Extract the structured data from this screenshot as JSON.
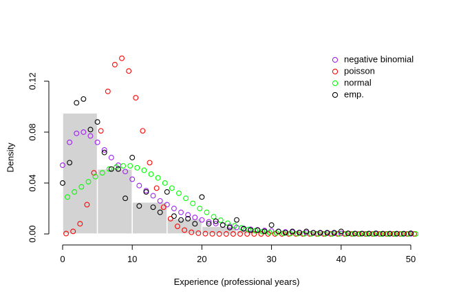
{
  "chart_data": {
    "type": "scatter",
    "title": "",
    "xlabel": "Experience (professional years)",
    "ylabel": "Density",
    "xlim": [
      0,
      51
    ],
    "ylim": [
      0,
      0.14
    ],
    "x_ticks": [
      0,
      10,
      20,
      30,
      40,
      50
    ],
    "y_ticks": [
      0.0,
      0.04,
      0.08,
      0.12
    ],
    "y_tick_labels": [
      "0.00",
      "0.04",
      "0.08",
      "0.12"
    ],
    "legend_position": "top-right",
    "histogram": {
      "bins": [
        {
          "from": 0,
          "to": 5,
          "density": 0.095
        },
        {
          "from": 5,
          "to": 10,
          "density": 0.051
        },
        {
          "from": 10,
          "to": 15,
          "density": 0.025
        },
        {
          "from": 15,
          "to": 20,
          "density": 0.012
        },
        {
          "from": 20,
          "to": 25,
          "density": 0.006
        },
        {
          "from": 25,
          "to": 30,
          "density": 0.003
        },
        {
          "from": 30,
          "to": 35,
          "density": 0.002
        },
        {
          "from": 35,
          "to": 40,
          "density": 0.001
        },
        {
          "from": 40,
          "to": 45,
          "density": 0.0005
        },
        {
          "from": 45,
          "to": 50,
          "density": 0.0003
        }
      ]
    },
    "series": [
      {
        "name": "negative binomial",
        "color": "#a020f0",
        "points": [
          [
            0,
            0.054
          ],
          [
            1,
            0.072
          ],
          [
            2,
            0.079
          ],
          [
            3,
            0.08
          ],
          [
            4,
            0.077
          ],
          [
            5,
            0.072
          ],
          [
            6,
            0.066
          ],
          [
            7,
            0.06
          ],
          [
            8,
            0.054
          ],
          [
            9,
            0.049
          ],
          [
            10,
            0.043
          ],
          [
            11,
            0.038
          ],
          [
            12,
            0.034
          ],
          [
            13,
            0.03
          ],
          [
            14,
            0.026
          ],
          [
            15,
            0.023
          ],
          [
            16,
            0.02
          ],
          [
            17,
            0.017
          ],
          [
            18,
            0.015
          ],
          [
            19,
            0.013
          ],
          [
            20,
            0.011
          ],
          [
            21,
            0.0095
          ],
          [
            22,
            0.0082
          ],
          [
            23,
            0.007
          ],
          [
            24,
            0.006
          ],
          [
            25,
            0.0051
          ],
          [
            26,
            0.0044
          ],
          [
            27,
            0.0037
          ],
          [
            28,
            0.0032
          ],
          [
            29,
            0.0027
          ],
          [
            30,
            0.0023
          ],
          [
            31,
            0.0019
          ],
          [
            32,
            0.0016
          ],
          [
            33,
            0.0014
          ],
          [
            34,
            0.0012
          ],
          [
            35,
            0.001
          ],
          [
            36,
            0.0008
          ],
          [
            37,
            0.0007
          ],
          [
            38,
            0.0006
          ],
          [
            39,
            0.0005
          ],
          [
            40,
            0.0004
          ],
          [
            41,
            0.00035
          ],
          [
            42,
            0.0003
          ],
          [
            43,
            0.00025
          ],
          [
            44,
            0.0002
          ],
          [
            45,
            0.00017
          ],
          [
            46,
            0.00014
          ],
          [
            47,
            0.00012
          ],
          [
            48,
            0.0001
          ],
          [
            49,
            8e-05
          ],
          [
            50,
            7e-05
          ]
        ]
      },
      {
        "name": "poisson",
        "color": "#ff0000",
        "points": [
          [
            0.5,
            0.0003
          ],
          [
            1.5,
            0.002
          ],
          [
            2.5,
            0.008
          ],
          [
            3.5,
            0.023
          ],
          [
            4.5,
            0.048
          ],
          [
            5.5,
            0.081
          ],
          [
            6.5,
            0.112
          ],
          [
            7.5,
            0.133
          ],
          [
            8.5,
            0.138
          ],
          [
            9.5,
            0.128
          ],
          [
            10.5,
            0.107
          ],
          [
            11.5,
            0.081
          ],
          [
            12.5,
            0.056
          ],
          [
            13.5,
            0.036
          ],
          [
            14.5,
            0.021
          ],
          [
            15.5,
            0.012
          ],
          [
            16.5,
            0.006
          ],
          [
            17.5,
            0.003
          ],
          [
            18.5,
            0.0013
          ],
          [
            19.5,
            0.0006
          ],
          [
            20.5,
            0.0002
          ],
          [
            21.5,
            0.0001
          ],
          [
            22.5,
            0
          ],
          [
            23.5,
            0
          ],
          [
            24.5,
            0
          ],
          [
            25.5,
            0
          ],
          [
            26.5,
            0
          ],
          [
            27.5,
            0
          ],
          [
            28.5,
            0
          ],
          [
            29.5,
            0
          ],
          [
            30.5,
            0
          ],
          [
            31.5,
            0
          ],
          [
            32.5,
            0
          ],
          [
            33.5,
            0
          ],
          [
            34.5,
            0
          ],
          [
            35.5,
            0
          ],
          [
            36.5,
            0
          ],
          [
            37.5,
            0
          ],
          [
            38.5,
            0
          ],
          [
            39.5,
            0
          ],
          [
            40.5,
            0
          ],
          [
            41.5,
            0
          ],
          [
            42.5,
            0
          ],
          [
            43.5,
            0
          ],
          [
            44.5,
            0
          ],
          [
            45.5,
            0
          ],
          [
            46.5,
            0
          ],
          [
            47.5,
            0
          ],
          [
            48.5,
            0
          ],
          [
            49.5,
            0
          ],
          [
            50.5,
            0
          ]
        ]
      },
      {
        "name": "normal",
        "color": "#00ff00",
        "points": [
          [
            0.7,
            0.029
          ],
          [
            1.7,
            0.033
          ],
          [
            2.7,
            0.037
          ],
          [
            3.7,
            0.041
          ],
          [
            4.7,
            0.045
          ],
          [
            5.7,
            0.048
          ],
          [
            6.7,
            0.051
          ],
          [
            7.7,
            0.0525
          ],
          [
            8.7,
            0.0535
          ],
          [
            9.7,
            0.0535
          ],
          [
            10.7,
            0.052
          ],
          [
            11.7,
            0.05
          ],
          [
            12.7,
            0.047
          ],
          [
            13.7,
            0.044
          ],
          [
            14.7,
            0.04
          ],
          [
            15.7,
            0.036
          ],
          [
            16.7,
            0.032
          ],
          [
            17.7,
            0.028
          ],
          [
            18.7,
            0.024
          ],
          [
            19.7,
            0.02
          ],
          [
            20.7,
            0.017
          ],
          [
            21.7,
            0.0135
          ],
          [
            22.7,
            0.0108
          ],
          [
            23.7,
            0.0084
          ],
          [
            24.7,
            0.0064
          ],
          [
            25.7,
            0.0048
          ],
          [
            26.7,
            0.0035
          ],
          [
            27.7,
            0.0025
          ],
          [
            28.7,
            0.0018
          ],
          [
            29.7,
            0.0012
          ],
          [
            30.7,
            0.0008
          ],
          [
            31.7,
            0.0005
          ],
          [
            32.7,
            0.0003
          ],
          [
            33.7,
            0.0002
          ],
          [
            34.7,
            0.0001
          ],
          [
            35.7,
            0.0001
          ],
          [
            36.7,
            0
          ],
          [
            37.7,
            0
          ],
          [
            38.7,
            0
          ],
          [
            39.7,
            0
          ],
          [
            40.7,
            0
          ],
          [
            41.7,
            0
          ],
          [
            42.7,
            0
          ],
          [
            43.7,
            0
          ],
          [
            44.7,
            0
          ],
          [
            45.7,
            0
          ],
          [
            46.7,
            0
          ],
          [
            47.7,
            0
          ],
          [
            48.7,
            0
          ],
          [
            49.7,
            0
          ],
          [
            50.7,
            0
          ]
        ]
      },
      {
        "name": "emp.",
        "color": "#000000",
        "points": [
          [
            0,
            0.04
          ],
          [
            1,
            0.056
          ],
          [
            2,
            0.103
          ],
          [
            3,
            0.106
          ],
          [
            4,
            0.082
          ],
          [
            5,
            0.088
          ],
          [
            6,
            0.064
          ],
          [
            7,
            0.051
          ],
          [
            8,
            0.051
          ],
          [
            9,
            0.028
          ],
          [
            10,
            0.06
          ],
          [
            11,
            0.022
          ],
          [
            12,
            0.033
          ],
          [
            13,
            0.021
          ],
          [
            14,
            0.017
          ],
          [
            15,
            0.033
          ],
          [
            16,
            0.014
          ],
          [
            17,
            0.011
          ],
          [
            18,
            0.012
          ],
          [
            19,
            0.008
          ],
          [
            20,
            0.029
          ],
          [
            21,
            0.008
          ],
          [
            22,
            0.01
          ],
          [
            23,
            0.007
          ],
          [
            24,
            0.005
          ],
          [
            25,
            0.011
          ],
          [
            26,
            0.004
          ],
          [
            27,
            0.003
          ],
          [
            28,
            0.003
          ],
          [
            29,
            0.002
          ],
          [
            30,
            0.007
          ],
          [
            31,
            0.002
          ],
          [
            32,
            0.001
          ],
          [
            33,
            0.002
          ],
          [
            34,
            0.001
          ],
          [
            35,
            0.002
          ],
          [
            36,
            0.001
          ],
          [
            37,
            0.001
          ],
          [
            38,
            0.001
          ],
          [
            39,
            0.001
          ],
          [
            40,
            0.002
          ],
          [
            41,
            0.0005
          ],
          [
            42,
            0.0003
          ],
          [
            43,
            0.0003
          ],
          [
            44,
            0.0003
          ],
          [
            45,
            0.0005
          ],
          [
            46,
            0.0002
          ],
          [
            47,
            0.0002
          ],
          [
            48,
            0.0002
          ],
          [
            49,
            0.0002
          ],
          [
            50,
            0.0005
          ]
        ]
      }
    ]
  }
}
